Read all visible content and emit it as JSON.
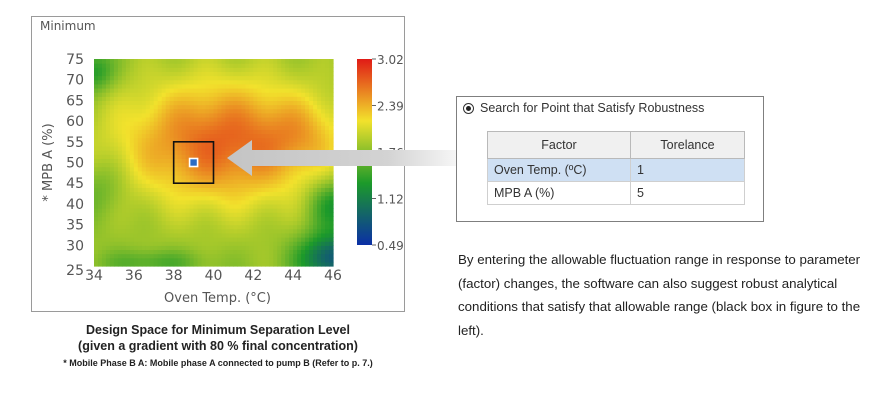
{
  "chart_data": {
    "type": "heatmap",
    "title": "Minimum",
    "xlabel": "Oven Temp. (°C)",
    "ylabel": "* MPB A (%)",
    "x_ticks": [
      "34",
      "36",
      "38",
      "40",
      "42",
      "44",
      "46"
    ],
    "y_ticks": [
      "25",
      "30",
      "35",
      "40",
      "45",
      "50",
      "55",
      "60",
      "65",
      "70",
      "75"
    ],
    "xlim": [
      34,
      46
    ],
    "ylim": [
      25,
      75
    ],
    "colorbar": {
      "ticks": [
        "3.02",
        "2.39",
        "1.76",
        "1.12",
        "0.49"
      ],
      "min": 0.49,
      "max": 3.02,
      "colors": [
        "#0b2fa6",
        "#1c9a2a",
        "#f2e22c",
        "#e01b16"
      ]
    },
    "robust_point": {
      "x": 39,
      "y": 50,
      "x_tolerance": 1,
      "y_tolerance": 5
    },
    "grid": false
  },
  "caption": {
    "line1": "Design Space for Minimum Separation Level",
    "line2": "(given a gradient with 80 % final concentration)",
    "note": "* Mobile Phase B A: Mobile phase A connected to pump B (Refer to p. 7.)"
  },
  "dialog": {
    "option_label": "Search for Point that Satisfy Robustness",
    "columns": [
      "Factor",
      "Torelance"
    ],
    "rows": [
      {
        "factor": "Oven Temp. (ºC)",
        "tolerance": "1"
      },
      {
        "factor": "MPB A (%)",
        "tolerance": "5"
      }
    ]
  },
  "description": "By entering the allowable fluctuation range in response to parameter (factor) changes, the software can also suggest robust analytical conditions that satisfy that allowable range (black box in figure to the left).",
  "colors": {
    "arrow": "#c9c9c9",
    "selection": "#cfe0f3",
    "marker": "#2b6cc4"
  }
}
